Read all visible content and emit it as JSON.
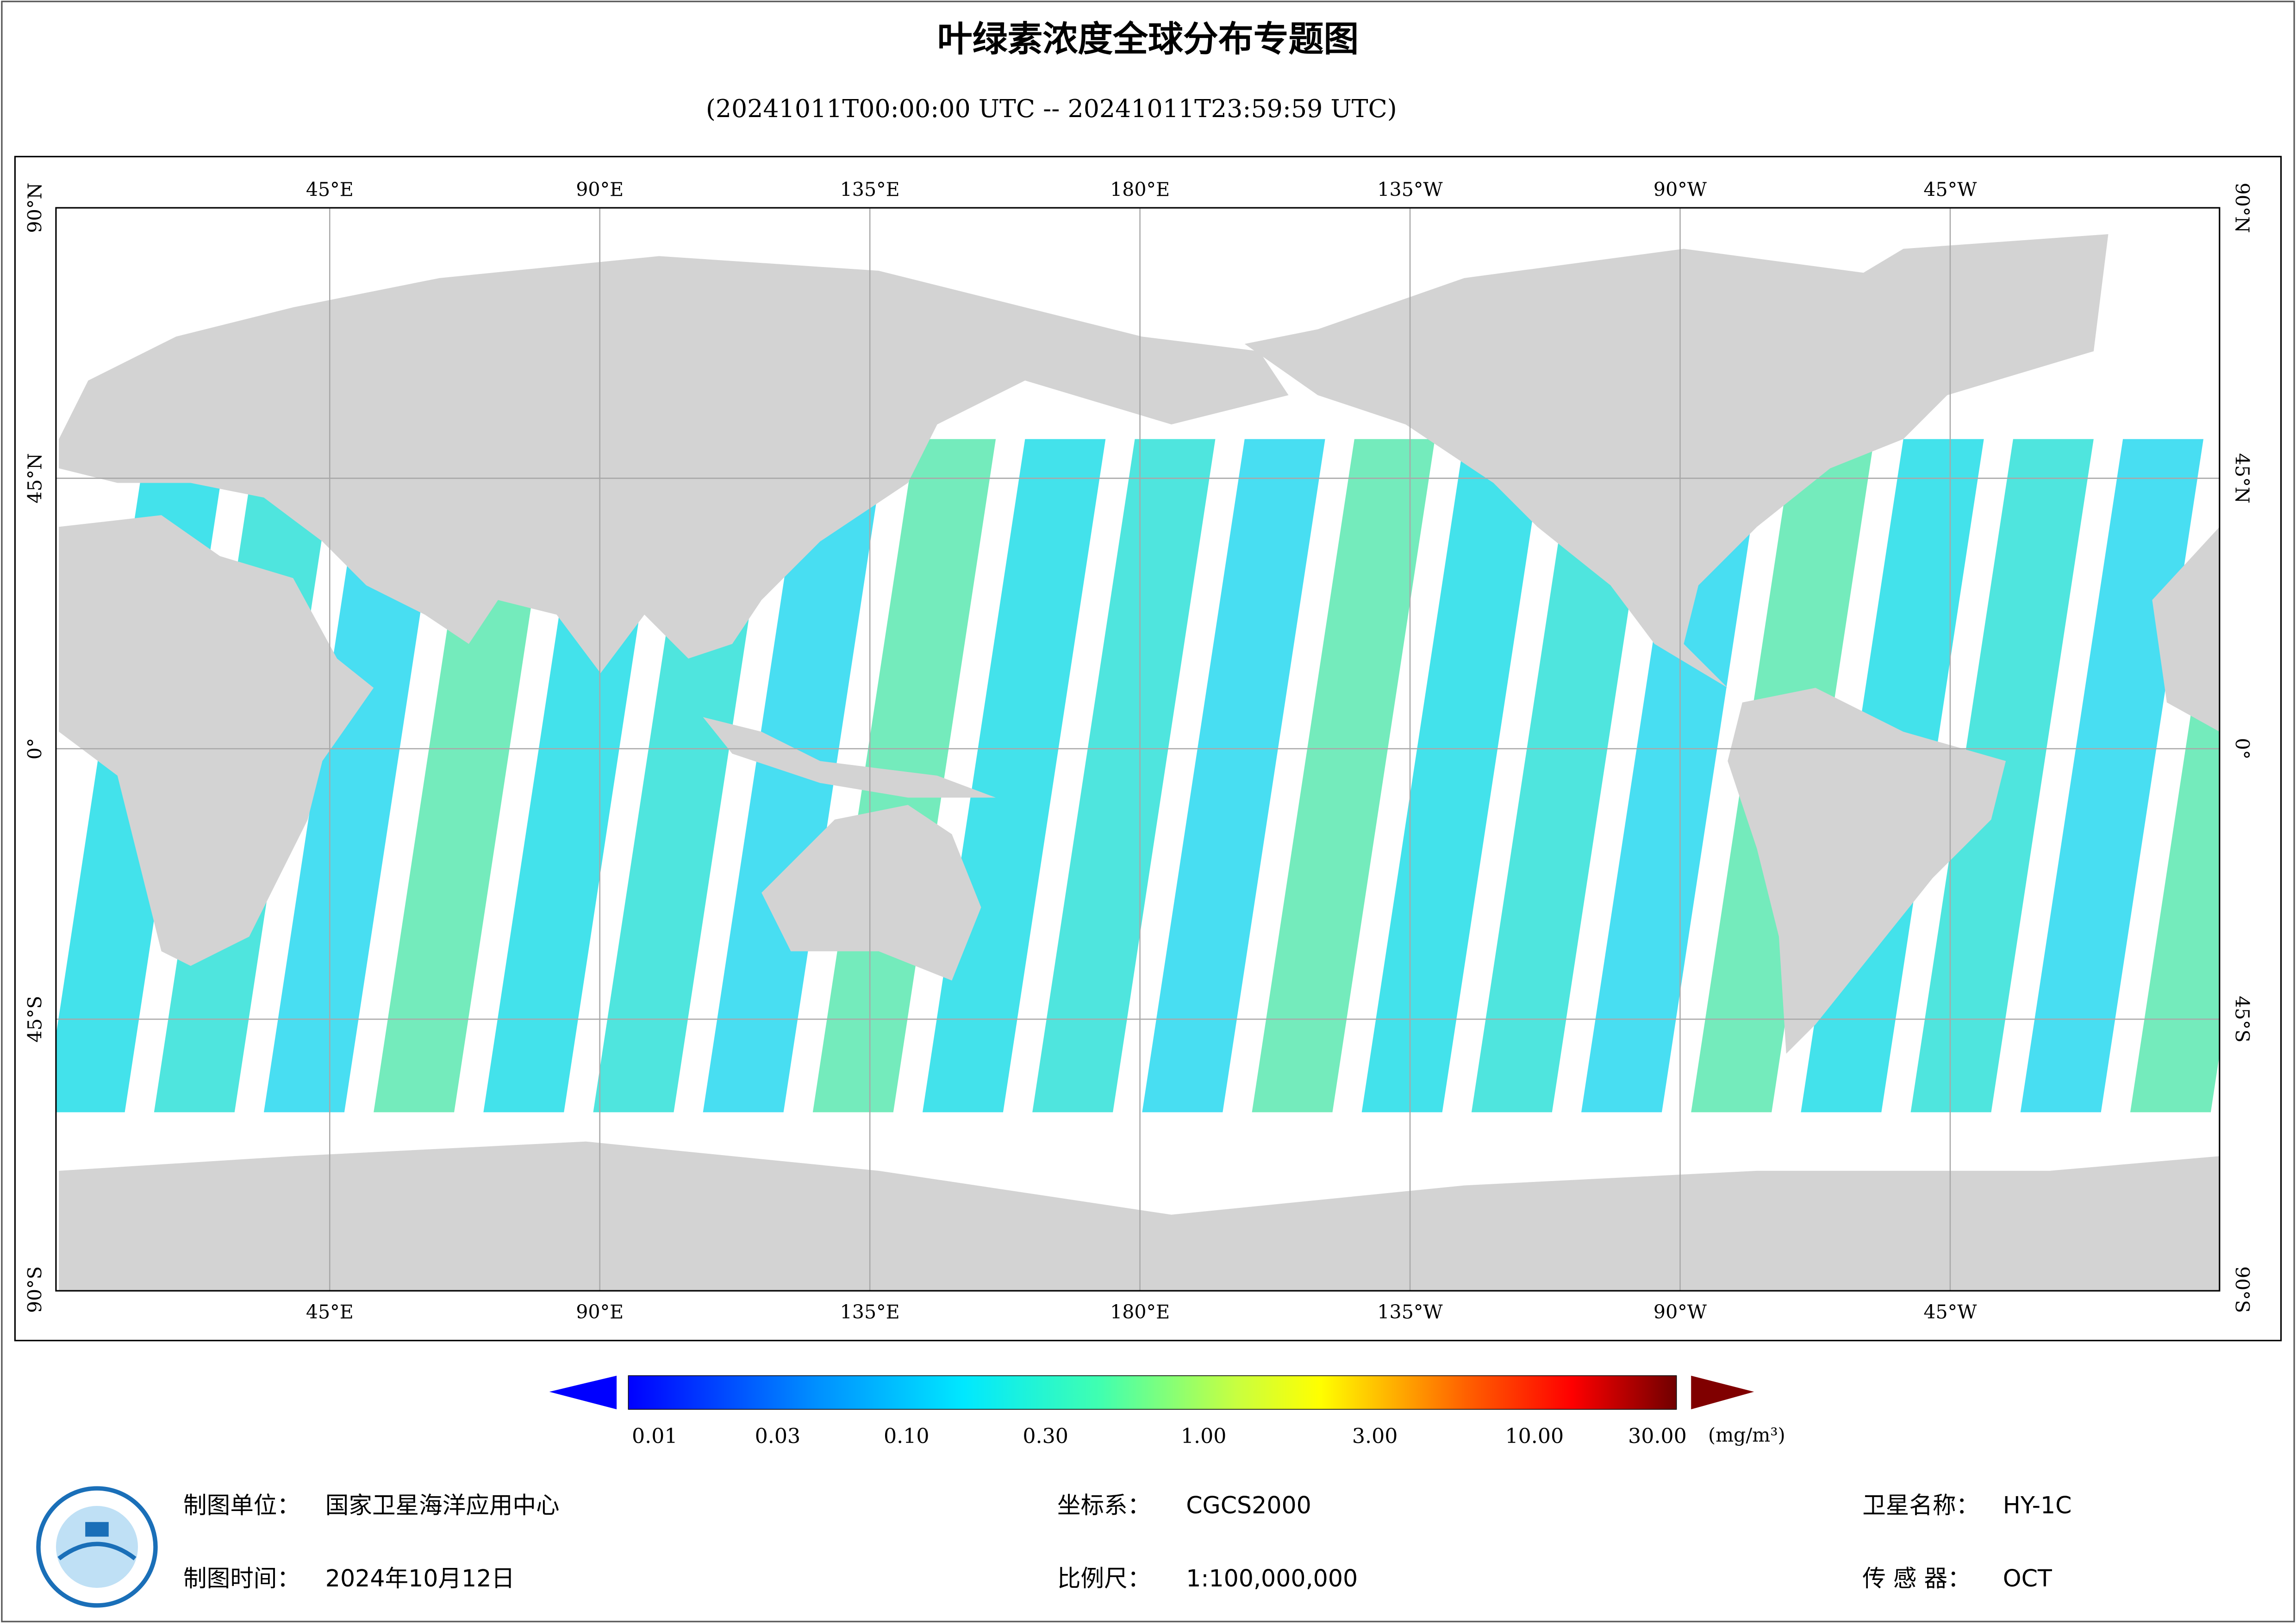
{
  "header": {
    "title": "叶绿素浓度全球分布专题图",
    "subtitle": "(20241011T00:00:00 UTC -- 20241011T23:59:59 UTC)"
  },
  "map": {
    "lon_labels": [
      "45°E",
      "90°E",
      "135°E",
      "180°E",
      "135°W",
      "90°W",
      "45°W"
    ],
    "lat_labels": [
      "90°N",
      "45°N",
      "0°",
      "45°S",
      "90°S"
    ]
  },
  "legend": {
    "ticks": [
      "0.01",
      "0.03",
      "0.10",
      "0.30",
      "1.00",
      "3.00",
      "10.00",
      "30.00"
    ],
    "unit": "(mg/m³)"
  },
  "footer": {
    "unit_label": "制图单位：",
    "unit_value": "国家卫星海洋应用中心",
    "time_label": "制图时间：",
    "time_value": "2024年10月12日",
    "crs_label": "坐标系：",
    "crs_value": "CGCS2000",
    "scale_label": "比例尺：",
    "scale_value": "1:100,000,000",
    "sat_label": "卫星名称：",
    "sat_value": "HY-1C",
    "sensor_label": "传 感 器：",
    "sensor_value": "OCT"
  }
}
